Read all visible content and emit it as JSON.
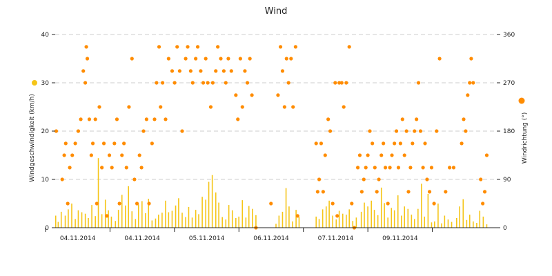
{
  "chart_data": {
    "type": "bar+scatter",
    "title": "Wind",
    "legend": "none",
    "grid": "horizontal dashed",
    "y_left": {
      "label": "Windgeschwindigkeit (km/h)",
      "range": [
        0,
        40
      ],
      "ticks": [
        "0",
        "10",
        "20",
        "30",
        "40"
      ]
    },
    "y_right": {
      "label": "Windrichtung (°)",
      "range": [
        0,
        360
      ],
      "ticks": [
        "0",
        "90",
        "180",
        "270",
        "360"
      ]
    },
    "x_labels": [
      "04.11.2014",
      "04.11.2014",
      "05.11.2014",
      "06.11.2014",
      "07.11.2014",
      "09.11.2014"
    ],
    "series": [
      {
        "type": "bar",
        "color": "#f5c518",
        "axis": "left",
        "values": [
          [
            0.1,
            2.5
          ],
          [
            0.6,
            1.2
          ],
          [
            1.2,
            3.3
          ],
          [
            2.0,
            2.5
          ],
          [
            2.6,
            3.8
          ],
          [
            3.3,
            5.0
          ],
          [
            4.0,
            1.8
          ],
          [
            4.6,
            3.6
          ],
          [
            5.3,
            3.2
          ],
          [
            6.0,
            2.9
          ],
          [
            6.6,
            2.0
          ],
          [
            7.3,
            4.7
          ],
          [
            8.0,
            2.4
          ],
          [
            8.6,
            14.4
          ],
          [
            9.3,
            2.8
          ],
          [
            10.0,
            5.8
          ],
          [
            10.6,
            3.6
          ],
          [
            11.2,
            2.3
          ],
          [
            12.0,
            1.4
          ],
          [
            12.6,
            3.7
          ],
          [
            13.3,
            6.8
          ],
          [
            14.0,
            4.6
          ],
          [
            14.6,
            8.6
          ],
          [
            15.3,
            3.4
          ],
          [
            16.0,
            1.8
          ],
          [
            16.6,
            4.8
          ],
          [
            17.3,
            5.5
          ],
          [
            18.0,
            3.0
          ],
          [
            18.6,
            6.0
          ],
          [
            19.3,
            1.5
          ],
          [
            20.0,
            1.9
          ],
          [
            20.6,
            2.7
          ],
          [
            21.3,
            3.1
          ],
          [
            22.0,
            5.6
          ],
          [
            22.6,
            3.2
          ],
          [
            23.3,
            3.5
          ],
          [
            24.0,
            4.6
          ],
          [
            24.6,
            6.1
          ],
          [
            25.3,
            3.1
          ],
          [
            26.0,
            2.2
          ],
          [
            26.6,
            4.3
          ],
          [
            27.3,
            2.1
          ],
          [
            28.0,
            3.7
          ],
          [
            28.6,
            2.8
          ],
          [
            29.3,
            6.4
          ],
          [
            30.0,
            5.8
          ],
          [
            30.6,
            9.5
          ],
          [
            31.3,
            10.9
          ],
          [
            32.0,
            7.3
          ],
          [
            32.6,
            5.2
          ],
          [
            33.3,
            2.2
          ],
          [
            34.0,
            1.7
          ],
          [
            34.6,
            4.7
          ],
          [
            35.3,
            3.6
          ],
          [
            36.0,
            2.0
          ],
          [
            36.6,
            2.3
          ],
          [
            37.3,
            5.7
          ],
          [
            38.0,
            2.1
          ],
          [
            38.6,
            4.5
          ],
          [
            39.3,
            3.9
          ],
          [
            40.0,
            2.6
          ],
          [
            44.0,
            0.8
          ],
          [
            44.6,
            2.5
          ],
          [
            45.3,
            3.3
          ],
          [
            46.0,
            8.2
          ],
          [
            46.6,
            4.4
          ],
          [
            47.3,
            1.3
          ],
          [
            48.0,
            3.7
          ],
          [
            48.6,
            2.2
          ],
          [
            52.0,
            2.3
          ],
          [
            52.6,
            1.8
          ],
          [
            53.3,
            3.8
          ],
          [
            54.0,
            4.4
          ],
          [
            54.6,
            5.6
          ],
          [
            55.3,
            2.5
          ],
          [
            56.0,
            1.7
          ],
          [
            56.6,
            3.5
          ],
          [
            57.3,
            2.9
          ],
          [
            58.0,
            2.7
          ],
          [
            58.6,
            3.8
          ],
          [
            59.3,
            1.4
          ],
          [
            60.0,
            2.1
          ],
          [
            61.0,
            3.3
          ],
          [
            61.6,
            5.2
          ],
          [
            62.3,
            4.4
          ],
          [
            63.0,
            5.6
          ],
          [
            63.6,
            3.7
          ],
          [
            64.3,
            2.6
          ],
          [
            65.0,
            8.3
          ],
          [
            65.6,
            5.1
          ],
          [
            66.3,
            2.1
          ],
          [
            67.0,
            4.1
          ],
          [
            67.6,
            3.6
          ],
          [
            68.3,
            6.7
          ],
          [
            69.0,
            2.5
          ],
          [
            69.6,
            4.4
          ],
          [
            70.3,
            3.9
          ],
          [
            71.0,
            2.7
          ],
          [
            71.6,
            1.8
          ],
          [
            72.3,
            3.9
          ],
          [
            73.0,
            9.1
          ],
          [
            73.6,
            2.3
          ],
          [
            74.3,
            7.0
          ],
          [
            75.0,
            1.1
          ],
          [
            75.6,
            1.3
          ],
          [
            76.3,
            5.0
          ],
          [
            77.0,
            0.9
          ],
          [
            77.6,
            2.5
          ],
          [
            78.3,
            1.7
          ],
          [
            79.0,
            1.2
          ],
          [
            80.0,
            2.0
          ],
          [
            80.6,
            4.4
          ],
          [
            81.3,
            5.9
          ],
          [
            82.0,
            1.6
          ],
          [
            82.6,
            2.7
          ],
          [
            83.3,
            1.3
          ],
          [
            84.0,
            1.0
          ],
          [
            84.6,
            3.5
          ],
          [
            85.3,
            2.3
          ],
          [
            86.0,
            0.7
          ]
        ]
      },
      {
        "type": "scatter",
        "color": "#ff8c00",
        "axis": "right",
        "values": [
          [
            0.2,
            180
          ],
          [
            1.4,
            90
          ],
          [
            1.8,
            135
          ],
          [
            2.1,
            157
          ],
          [
            2.5,
            45
          ],
          [
            2.9,
            112
          ],
          [
            3.4,
            135
          ],
          [
            4.0,
            157
          ],
          [
            4.6,
            180
          ],
          [
            5.1,
            202
          ],
          [
            5.6,
            292
          ],
          [
            6.0,
            270
          ],
          [
            6.2,
            337
          ],
          [
            6.4,
            315
          ],
          [
            6.8,
            202
          ],
          [
            7.2,
            135
          ],
          [
            7.5,
            157
          ],
          [
            8.0,
            202
          ],
          [
            8.3,
            45
          ],
          [
            8.8,
            225
          ],
          [
            9.3,
            112
          ],
          [
            9.7,
            157
          ],
          [
            10.3,
            22
          ],
          [
            10.8,
            135
          ],
          [
            11.3,
            112
          ],
          [
            11.8,
            157
          ],
          [
            12.3,
            202
          ],
          [
            12.8,
            45
          ],
          [
            13.3,
            135
          ],
          [
            13.7,
            157
          ],
          [
            14.2,
            112
          ],
          [
            14.7,
            225
          ],
          [
            15.3,
            315
          ],
          [
            15.8,
            90
          ],
          [
            16.3,
            45
          ],
          [
            16.8,
            135
          ],
          [
            17.2,
            112
          ],
          [
            17.6,
            180
          ],
          [
            18.2,
            202
          ],
          [
            18.7,
            45
          ],
          [
            19.3,
            157
          ],
          [
            19.8,
            202
          ],
          [
            20.2,
            270
          ],
          [
            20.7,
            337
          ],
          [
            21.0,
            225
          ],
          [
            21.4,
            270
          ],
          [
            22.0,
            202
          ],
          [
            22.6,
            315
          ],
          [
            23.3,
            292
          ],
          [
            23.8,
            270
          ],
          [
            24.3,
            337
          ],
          [
            24.8,
            292
          ],
          [
            25.3,
            180
          ],
          [
            26.0,
            315
          ],
          [
            26.4,
            337
          ],
          [
            27.0,
            292
          ],
          [
            27.4,
            270
          ],
          [
            28.0,
            315
          ],
          [
            28.4,
            337
          ],
          [
            29.0,
            292
          ],
          [
            29.5,
            270
          ],
          [
            30.0,
            315
          ],
          [
            30.4,
            270
          ],
          [
            31.0,
            225
          ],
          [
            31.4,
            270
          ],
          [
            32.0,
            292
          ],
          [
            32.4,
            337
          ],
          [
            33.0,
            315
          ],
          [
            33.6,
            292
          ],
          [
            34.0,
            270
          ],
          [
            34.5,
            315
          ],
          [
            35.1,
            292
          ],
          [
            36.0,
            247
          ],
          [
            36.4,
            202
          ],
          [
            36.9,
            315
          ],
          [
            37.3,
            225
          ],
          [
            37.8,
            292
          ],
          [
            38.3,
            270
          ],
          [
            38.8,
            315
          ],
          [
            39.2,
            247
          ],
          [
            40.0,
            0
          ],
          [
            43.0,
            45
          ],
          [
            44.4,
            247
          ],
          [
            44.9,
            337
          ],
          [
            45.3,
            292
          ],
          [
            45.7,
            225
          ],
          [
            46.1,
            315
          ],
          [
            46.5,
            270
          ],
          [
            47.0,
            315
          ],
          [
            47.4,
            225
          ],
          [
            47.9,
            337
          ],
          [
            48.3,
            22
          ],
          [
            52.0,
            157
          ],
          [
            52.3,
            67
          ],
          [
            52.6,
            90
          ],
          [
            53.0,
            157
          ],
          [
            53.4,
            67
          ],
          [
            53.8,
            135
          ],
          [
            54.4,
            202
          ],
          [
            54.8,
            180
          ],
          [
            55.3,
            45
          ],
          [
            55.8,
            270
          ],
          [
            56.2,
            22
          ],
          [
            56.6,
            270
          ],
          [
            57.1,
            270
          ],
          [
            57.5,
            225
          ],
          [
            58.0,
            270
          ],
          [
            58.6,
            337
          ],
          [
            59.1,
            45
          ],
          [
            59.6,
            0
          ],
          [
            60.3,
            112
          ],
          [
            60.7,
            135
          ],
          [
            61.1,
            67
          ],
          [
            61.5,
            90
          ],
          [
            61.9,
            112
          ],
          [
            62.3,
            135
          ],
          [
            62.7,
            180
          ],
          [
            63.2,
            157
          ],
          [
            63.7,
            112
          ],
          [
            64.1,
            67
          ],
          [
            64.5,
            90
          ],
          [
            65.0,
            135
          ],
          [
            65.4,
            157
          ],
          [
            65.8,
            112
          ],
          [
            66.3,
            45
          ],
          [
            66.7,
            112
          ],
          [
            67.1,
            135
          ],
          [
            67.6,
            157
          ],
          [
            68.0,
            180
          ],
          [
            68.4,
            112
          ],
          [
            68.8,
            157
          ],
          [
            69.2,
            202
          ],
          [
            69.6,
            135
          ],
          [
            70.0,
            180
          ],
          [
            70.4,
            67
          ],
          [
            70.8,
            112
          ],
          [
            71.2,
            157
          ],
          [
            71.6,
            180
          ],
          [
            72.0,
            202
          ],
          [
            72.4,
            270
          ],
          [
            72.8,
            180
          ],
          [
            73.3,
            112
          ],
          [
            73.7,
            157
          ],
          [
            74.1,
            90
          ],
          [
            74.6,
            67
          ],
          [
            75.0,
            112
          ],
          [
            75.5,
            45
          ],
          [
            76.0,
            180
          ],
          [
            76.6,
            315
          ],
          [
            77.8,
            67
          ],
          [
            78.6,
            112
          ],
          [
            79.4,
            112
          ],
          [
            81.0,
            157
          ],
          [
            81.4,
            202
          ],
          [
            81.8,
            180
          ],
          [
            82.2,
            247
          ],
          [
            82.6,
            270
          ],
          [
            82.9,
            315
          ],
          [
            83.3,
            270
          ],
          [
            84.8,
            90
          ],
          [
            85.2,
            45
          ],
          [
            85.6,
            67
          ],
          [
            86.0,
            135
          ]
        ]
      }
    ]
  }
}
